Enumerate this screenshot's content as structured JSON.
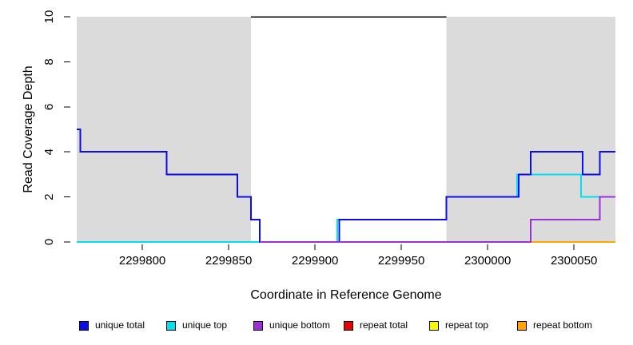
{
  "chart_data": {
    "type": "line",
    "subtype": "step",
    "title": "",
    "xlabel": "Coordinate in Reference Genome",
    "ylabel": "Read Coverage Depth",
    "x_domain": [
      2299762,
      2300074
    ],
    "y_domain": [
      0,
      10
    ],
    "x_ticks": [
      2299800,
      2299850,
      2299900,
      2299950,
      2300000,
      2300050
    ],
    "y_ticks": [
      0,
      2,
      4,
      6,
      8,
      10
    ],
    "grid": "off",
    "legend_position": "bottom",
    "shaded_regions": [
      {
        "name": "left-gray-region",
        "x_start": 2299762,
        "x_end": 2299863,
        "color": "#DBDBDB"
      },
      {
        "name": "right-gray-region",
        "x_start": 2299976,
        "x_end": 2300074,
        "color": "#DBDBDB"
      }
    ],
    "top_marker_segment": {
      "y": 10,
      "x_start": 2299863,
      "x_end": 2299976,
      "color": "#000000"
    },
    "series": [
      {
        "name": "repeat total",
        "color": "#E80000",
        "steps": [
          [
            2299762,
            0
          ],
          [
            2300074,
            0
          ]
        ]
      },
      {
        "name": "repeat top",
        "color": "#FBFB00",
        "steps": [
          [
            2299762,
            0
          ],
          [
            2300074,
            0
          ]
        ]
      },
      {
        "name": "repeat bottom",
        "color": "#FFA500",
        "steps": [
          [
            2299762,
            0
          ],
          [
            2300074,
            0
          ]
        ]
      },
      {
        "name": "unique top",
        "color": "#00E0EE",
        "steps": [
          [
            2299762,
            0
          ],
          [
            2299913,
            1
          ],
          [
            2299976,
            2
          ],
          [
            2300017,
            3
          ],
          [
            2300054,
            2
          ],
          [
            2300074,
            2
          ]
        ]
      },
      {
        "name": "unique total",
        "color": "#0D0DE8",
        "steps": [
          [
            2299762,
            5
          ],
          [
            2299764,
            4
          ],
          [
            2299814,
            3
          ],
          [
            2299855,
            2
          ],
          [
            2299863,
            1
          ],
          [
            2299868,
            0
          ],
          [
            2299914,
            1
          ],
          [
            2299976,
            2
          ],
          [
            2300018,
            3
          ],
          [
            2300025,
            4
          ],
          [
            2300055,
            3
          ],
          [
            2300065,
            4
          ],
          [
            2300074,
            4
          ]
        ]
      },
      {
        "name": "unique bottom",
        "color": "#9B30D6",
        "steps": [
          [
            2299868,
            0
          ],
          [
            2300025,
            1
          ],
          [
            2300065,
            2
          ],
          [
            2300074,
            2
          ]
        ]
      }
    ]
  },
  "legend": {
    "items": [
      {
        "label": "unique total",
        "color": "#0D0DE8"
      },
      {
        "label": "unique top",
        "color": "#00E0EE"
      },
      {
        "label": "unique bottom",
        "color": "#9B30D6"
      },
      {
        "label": "repeat total",
        "color": "#E80000"
      },
      {
        "label": "repeat top",
        "color": "#FBFB00"
      },
      {
        "label": "repeat bottom",
        "color": "#FFA500"
      }
    ]
  }
}
